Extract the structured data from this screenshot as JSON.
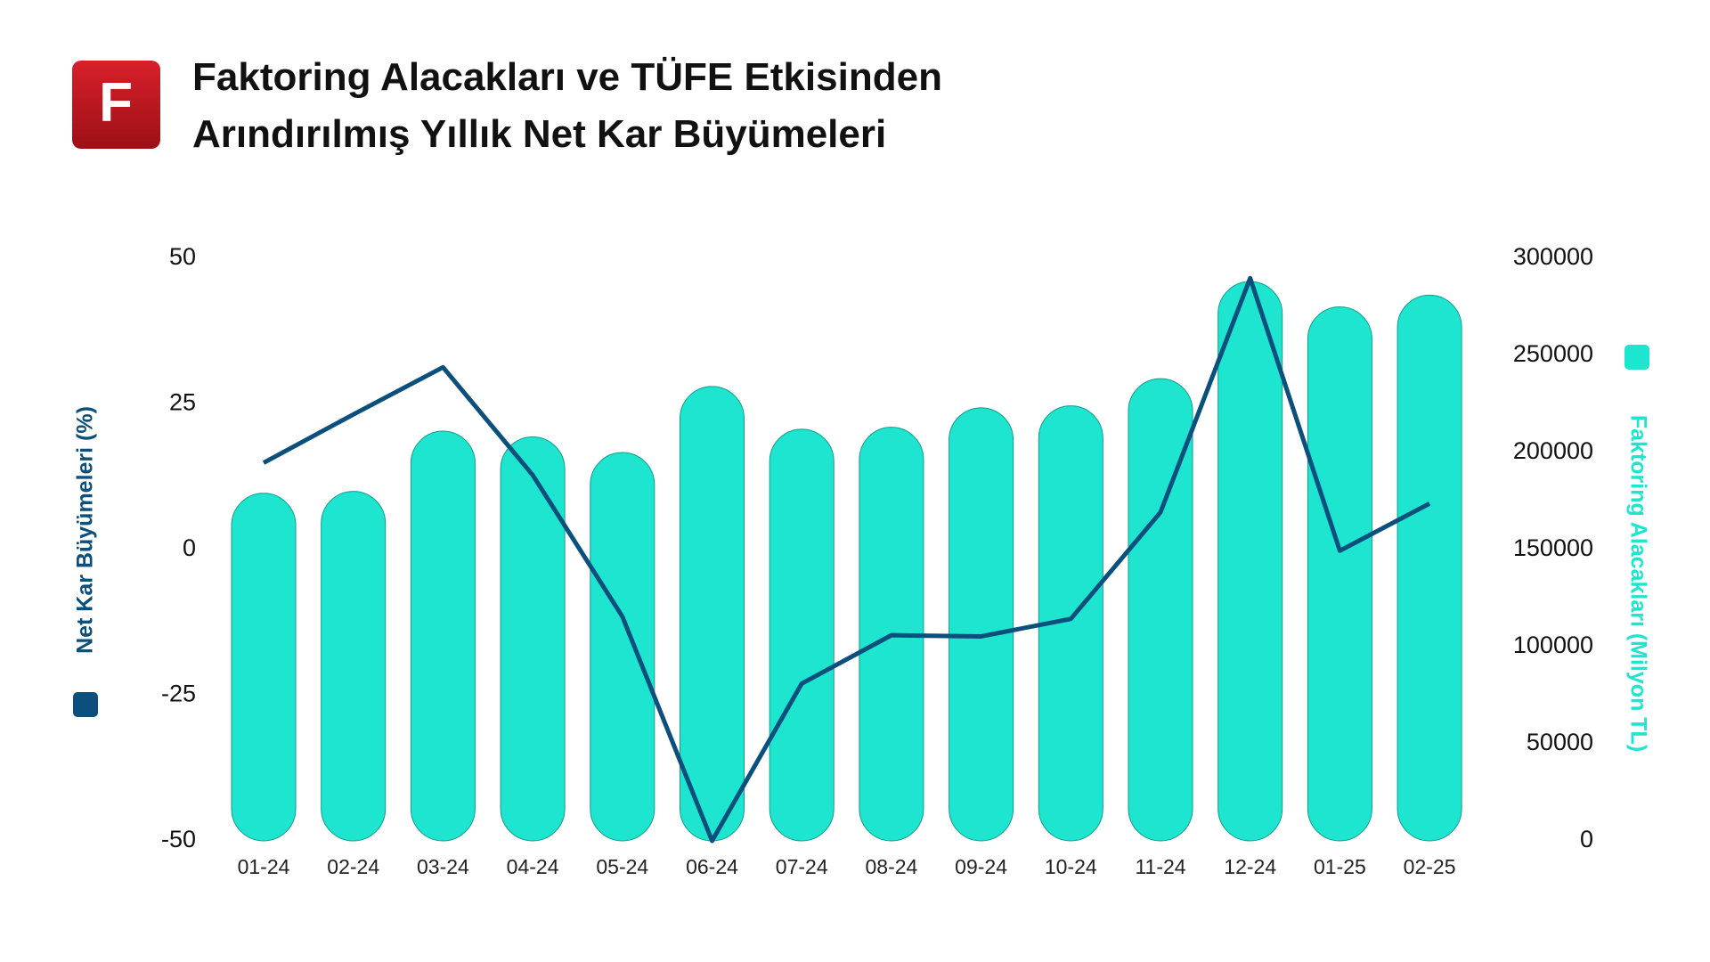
{
  "logo": "F",
  "chart_data": {
    "type": "bar-line",
    "title": [
      "Faktoring Alacakları ve TÜFE Etkisinden",
      "Arındırılmış Yıllık Net Kar Büyümeleri"
    ],
    "categories": [
      "01-24",
      "02-24",
      "03-24",
      "04-24",
      "05-24",
      "06-24",
      "07-24",
      "08-24",
      "09-24",
      "10-24",
      "11-24",
      "12-24",
      "01-25",
      "02-25"
    ],
    "series": [
      {
        "name": "Net Kar Büyümeleri (%)",
        "type": "line",
        "color": "#0b4f7c",
        "values": [
          14.9,
          23.2,
          31.3,
          12.8,
          -11.5,
          -50,
          -23,
          -14.7,
          -14.9,
          -11.9,
          6.4,
          46.6,
          -0.2,
          7.9
        ]
      },
      {
        "name": "Faktoring Alacakları (Milyon TL)",
        "type": "bar",
        "axis": "y2",
        "color": "#1de5cf",
        "values": [
          179000,
          180000,
          211000,
          208000,
          200000,
          234000,
          212000,
          213000,
          223000,
          224000,
          238000,
          288000,
          275000,
          281000
        ]
      }
    ],
    "ylim": [
      -50,
      50
    ],
    "yticks": [
      -50,
      -25,
      0,
      25,
      50
    ],
    "y2lim": [
      0,
      300000
    ],
    "y2ticks": [
      0,
      50000,
      100000,
      150000,
      200000,
      250000,
      300000
    ],
    "grid": false
  }
}
